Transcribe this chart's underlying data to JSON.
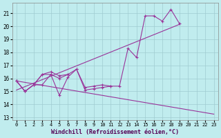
{
  "background_color": "#c0ecee",
  "grid_color": "#a0ccd0",
  "line_color": "#993399",
  "xlabel": "Windchill (Refroidissement éolien,°C)",
  "xlim": [
    -0.5,
    23.5
  ],
  "ylim": [
    12.8,
    21.8
  ],
  "xticks": [
    0,
    1,
    2,
    3,
    4,
    5,
    6,
    7,
    8,
    9,
    10,
    11,
    12,
    13,
    14,
    15,
    16,
    17,
    18,
    19,
    20,
    21,
    22,
    23
  ],
  "yticks": [
    13,
    14,
    15,
    16,
    17,
    18,
    19,
    20,
    21
  ],
  "series1_x": [
    0,
    1,
    2,
    3,
    4,
    5,
    6,
    7,
    8,
    9,
    10,
    11,
    12,
    13,
    14,
    15,
    16,
    17,
    18,
    19,
    20,
    21,
    22,
    23
  ],
  "series1_y": [
    15.8,
    15.0,
    15.5,
    15.5,
    16.3,
    14.7,
    16.1,
    16.7,
    15.1,
    15.2,
    15.3,
    15.4,
    15.4,
    18.3,
    17.6,
    20.8,
    20.8,
    20.4,
    21.3,
    20.2,
    null,
    null,
    null,
    null
  ],
  "series2_x": [
    0,
    1,
    2,
    3,
    4,
    5,
    6,
    7,
    8,
    9,
    10,
    11
  ],
  "series2_y": [
    15.8,
    15.0,
    15.5,
    16.3,
    16.5,
    16.2,
    16.3,
    16.7,
    15.3,
    15.4,
    15.5,
    15.4
  ],
  "series3_x": [
    0,
    1,
    2,
    3,
    4,
    5,
    6
  ],
  "series3_y": [
    15.8,
    15.0,
    15.5,
    16.3,
    16.3,
    16.0,
    16.3
  ],
  "trend1_x": [
    0,
    19
  ],
  "trend1_y": [
    15.1,
    20.15
  ],
  "trend2_x": [
    0,
    23
  ],
  "trend2_y": [
    15.8,
    13.25
  ]
}
